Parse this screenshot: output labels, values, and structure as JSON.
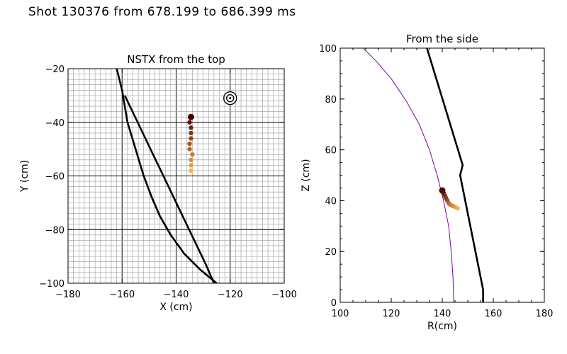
{
  "page_title": "Shot 130376 from 678.199 to 686.399 ms",
  "chart_data": [
    {
      "type": "line",
      "title": "NSTX from the top",
      "xlabel": "X (cm)",
      "ylabel": "Y (cm)",
      "xlim": [
        -180,
        -100
      ],
      "ylim": [
        -100,
        -20
      ],
      "xticks": [
        -180,
        -160,
        -140,
        -120,
        -100
      ],
      "yticks": [
        -100,
        -80,
        -60,
        -40,
        -20
      ],
      "xtick_labels": [
        "−180",
        "−160",
        "−140",
        "−120",
        "−100"
      ],
      "ytick_labels": [
        "−100",
        "−80",
        "−60",
        "−40",
        "−20"
      ],
      "grid": "fine 2 cm grid with heavier major lines every 20 cm",
      "series": [
        {
          "role": "vessel-wall-curve",
          "color": "#000000",
          "points": [
            [
              -162,
              -20
            ],
            [
              -160,
              -28
            ],
            [
              -158,
              -40
            ],
            [
              -155,
              -50
            ],
            [
              -152,
              -60
            ],
            [
              -149,
              -68
            ],
            [
              -146,
              -75
            ],
            [
              -142,
              -82
            ],
            [
              -137,
              -89
            ],
            [
              -131,
              -95
            ],
            [
              -125,
              -100
            ]
          ]
        },
        {
          "role": "view-line",
          "color": "#000000",
          "points": [
            [
              -159,
              -30
            ],
            [
              -129,
              -93
            ],
            [
              -126,
              -100
            ]
          ]
        },
        {
          "role": "puff-trajectory",
          "color_start": "#4a0000",
          "color_end": "#f7b24a",
          "points": [
            [
              -134.5,
              -38
            ],
            [
              -135,
              -40
            ],
            [
              -134.5,
              -42
            ],
            [
              -134.5,
              -44
            ],
            [
              -134.5,
              -46
            ],
            [
              -135,
              -48
            ],
            [
              -135,
              -50
            ],
            [
              -134,
              -52
            ],
            [
              -134.5,
              -54
            ],
            [
              -134.5,
              -56
            ],
            [
              -134.5,
              -58
            ]
          ]
        }
      ],
      "marker": {
        "icon": "target-icon",
        "x": -120,
        "y": -31
      }
    },
    {
      "type": "line",
      "title": "From the side",
      "xlabel": "R(cm)",
      "ylabel": "Z (cm)",
      "xlim": [
        100,
        180
      ],
      "ylim": [
        0,
        100
      ],
      "xticks": [
        100,
        120,
        140,
        160,
        180
      ],
      "yticks": [
        0,
        20,
        40,
        60,
        80,
        100
      ],
      "xtick_labels": [
        "100",
        "120",
        "140",
        "160",
        "180"
      ],
      "ytick_labels": [
        "0",
        "20",
        "40",
        "60",
        "80",
        "100"
      ],
      "grid": "none",
      "series": [
        {
          "role": "boundary-curve",
          "color": "#7a00a8",
          "points": [
            [
              108,
              101
            ],
            [
              114,
              95
            ],
            [
              120,
              88
            ],
            [
              126,
              79
            ],
            [
              131,
              70
            ],
            [
              135,
              60
            ],
            [
              138,
              50
            ],
            [
              140.5,
              40
            ],
            [
              142.5,
              30
            ],
            [
              143.5,
              20
            ],
            [
              144.2,
              10
            ],
            [
              144.5,
              0
            ]
          ]
        },
        {
          "role": "vessel-wall",
          "color": "#000000",
          "points": [
            [
              134,
              100
            ],
            [
              148,
              54
            ],
            [
              147,
              50
            ],
            [
              155,
              10
            ],
            [
              156,
              5
            ],
            [
              156,
              0
            ]
          ]
        },
        {
          "role": "puff-trajectory",
          "color_start": "#4a0000",
          "color_end": "#f7b24a",
          "points": [
            [
              140,
              44
            ],
            [
              140.5,
              43
            ],
            [
              141,
              42
            ],
            [
              141.5,
              41
            ],
            [
              142,
              40
            ],
            [
              142.5,
              39
            ],
            [
              143,
              38.5
            ],
            [
              144,
              38
            ],
            [
              145,
              37.5
            ],
            [
              146,
              37
            ]
          ]
        }
      ]
    }
  ]
}
